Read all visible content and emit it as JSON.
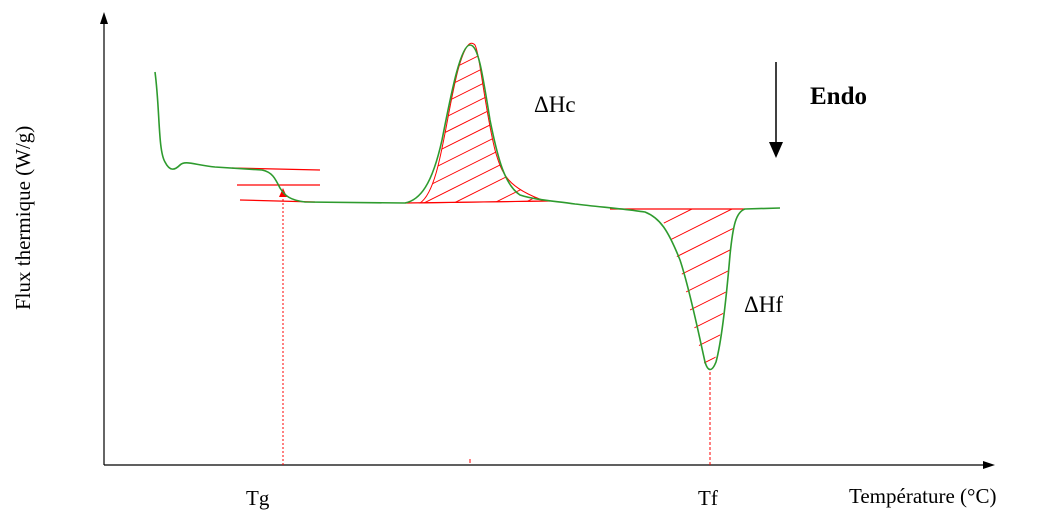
{
  "chart_data": {
    "type": "line",
    "title": "",
    "xlabel": "Température (°C)",
    "ylabel": "Flux thermique (W/g)",
    "x_ticks": [
      "Tg",
      "Tf"
    ],
    "annotations": {
      "crystallization": "ΔHc",
      "fusion": "ΔHf",
      "direction": "Endo"
    },
    "colors": {
      "curve": "#2e9b2e",
      "construction": "#ff0000",
      "axis": "#000000"
    },
    "grid": false
  }
}
